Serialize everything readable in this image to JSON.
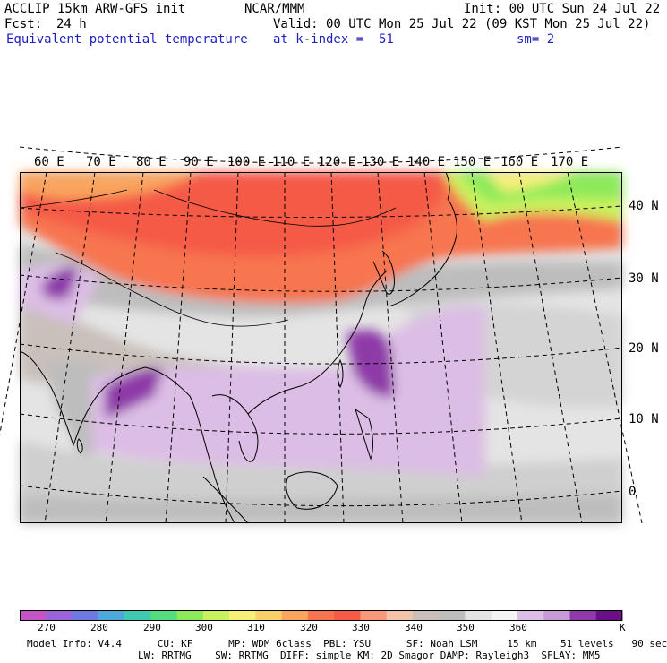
{
  "header": {
    "model": "ACCLIP 15km ARW-GFS init",
    "org": "NCAR/MMM",
    "init": "Init: 00 UTC Sun 24 Jul 22",
    "fcst_label": "Fcst:",
    "fcst_value": "24 h",
    "valid": "Valid: 00 UTC Mon 25 Jul 22 (09 KST Mon 25 Jul 22)",
    "field": "Equivalent potential temperature",
    "level": "at k-index =  51",
    "smoothing": "sm= 2"
  },
  "map": {
    "lon_labels": [
      "60 E",
      "70 E",
      "80 E",
      "90 E",
      "100 E",
      "110 E",
      "120 E",
      "130 E",
      "140 E",
      "150 E",
      "160 E",
      "170 E"
    ],
    "lat_labels": [
      "40 N",
      "30 N",
      "20 N",
      "10 N",
      "0"
    ]
  },
  "colorbar": {
    "unit": "K",
    "tick_labels": [
      "270",
      "280",
      "290",
      "300",
      "310",
      "320",
      "330",
      "340",
      "350",
      "360"
    ],
    "colors": [
      "#c455c4",
      "#9a63d8",
      "#6f79df",
      "#4fa9d8",
      "#3fc9b1",
      "#52de7c",
      "#8cea5a",
      "#c9f15e",
      "#f6ef78",
      "#fbd06b",
      "#f9a45f",
      "#f77450",
      "#f55a47",
      "#f6987a",
      "#f2c3a8",
      "#c9c0bb",
      "#bdbdbd",
      "#e4e4e4",
      "#f4f4f4",
      "#dcbde5",
      "#c79ad8",
      "#8e3aa8",
      "#6a1086"
    ]
  },
  "footer": {
    "line1": "Model Info: V4.4      CU: KF      MP: WDM 6class  PBL: YSU      SF: Noah LSM     15 km    51 levels   90 sec",
    "line2": "LW: RRTMG    SW: RRTMG  DIFF: simple KM: 2D Smagor DAMP: Rayleigh3  SFLAY: MM5"
  }
}
